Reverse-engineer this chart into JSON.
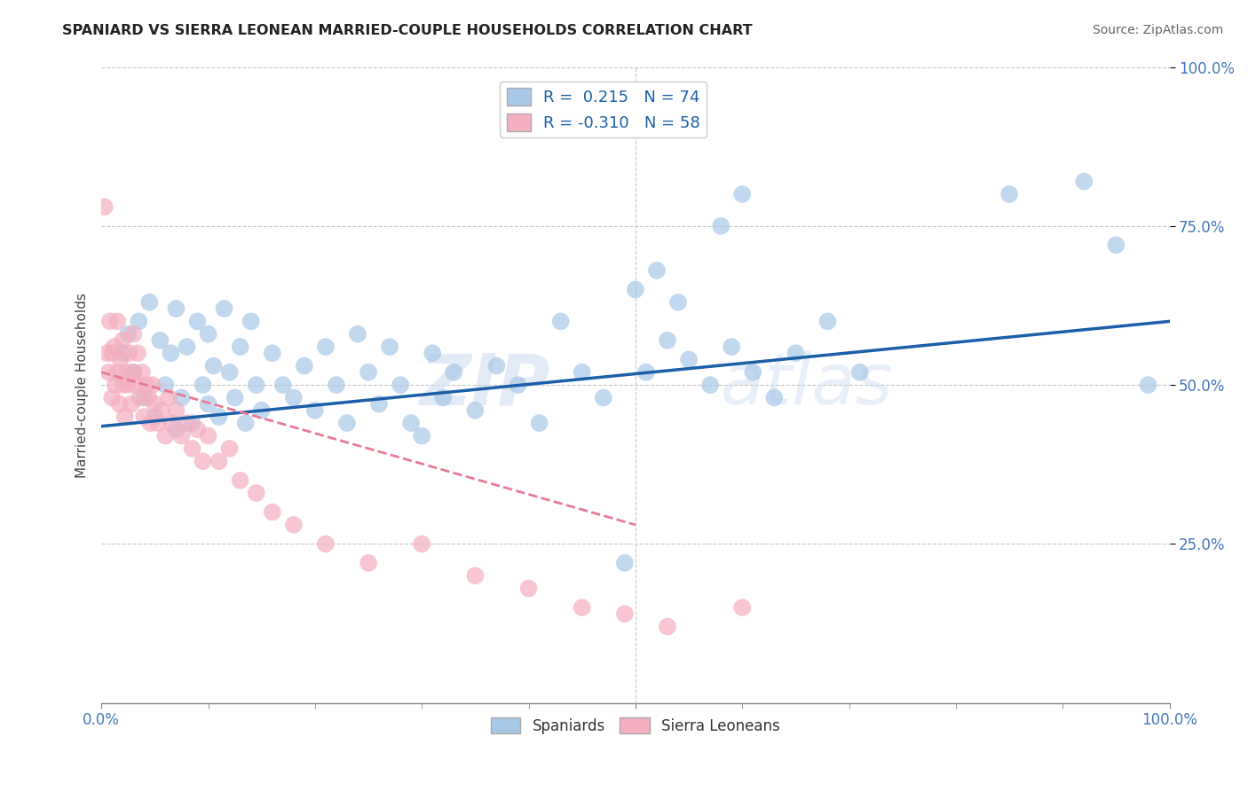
{
  "title": "SPANIARD VS SIERRA LEONEAN MARRIED-COUPLE HOUSEHOLDS CORRELATION CHART",
  "source": "Source: ZipAtlas.com",
  "ylabel": "Married-couple Households",
  "xlim": [
    0.0,
    1.0
  ],
  "ylim": [
    0.0,
    1.0
  ],
  "xtick_labels": [
    "0.0%",
    "100.0%"
  ],
  "xtick_vals": [
    0.0,
    1.0
  ],
  "ytick_labels": [
    "25.0%",
    "50.0%",
    "75.0%",
    "100.0%"
  ],
  "ytick_vals": [
    0.25,
    0.5,
    0.75,
    1.0
  ],
  "spaniard_color": "#a8c8e8",
  "sierra_color": "#f4afc0",
  "trend_spaniard_color": "#1a5fa8",
  "trend_sierra_color": "#e87a95",
  "watermark_zip": "ZIP",
  "watermark_atlas": "atlas",
  "background_color": "#ffffff",
  "grid_color": "#c8c8c8",
  "R_spaniard": 0.215,
  "N_spaniard": 74,
  "R_sierra": -0.31,
  "N_sierra": 58,
  "legend_label_sp": "R =  0.215   N = 74",
  "legend_label_sl": "R = -0.310   N = 58",
  "spaniard_x": [
    0.02,
    0.025,
    0.03,
    0.035,
    0.04,
    0.045,
    0.05,
    0.055,
    0.06,
    0.065,
    0.07,
    0.07,
    0.075,
    0.08,
    0.085,
    0.09,
    0.095,
    0.1,
    0.1,
    0.105,
    0.11,
    0.115,
    0.12,
    0.125,
    0.13,
    0.135,
    0.14,
    0.145,
    0.15,
    0.16,
    0.17,
    0.18,
    0.19,
    0.2,
    0.21,
    0.22,
    0.23,
    0.24,
    0.25,
    0.26,
    0.27,
    0.28,
    0.29,
    0.3,
    0.31,
    0.32,
    0.33,
    0.35,
    0.37,
    0.39,
    0.41,
    0.43,
    0.45,
    0.47,
    0.49,
    0.51,
    0.53,
    0.55,
    0.57,
    0.59,
    0.61,
    0.63,
    0.65,
    0.68,
    0.71,
    0.5,
    0.52,
    0.54,
    0.58,
    0.6,
    0.85,
    0.92,
    0.95,
    0.98
  ],
  "spaniard_y": [
    0.55,
    0.58,
    0.52,
    0.6,
    0.48,
    0.63,
    0.45,
    0.57,
    0.5,
    0.55,
    0.43,
    0.62,
    0.48,
    0.56,
    0.44,
    0.6,
    0.5,
    0.47,
    0.58,
    0.53,
    0.45,
    0.62,
    0.52,
    0.48,
    0.56,
    0.44,
    0.6,
    0.5,
    0.46,
    0.55,
    0.5,
    0.48,
    0.53,
    0.46,
    0.56,
    0.5,
    0.44,
    0.58,
    0.52,
    0.47,
    0.56,
    0.5,
    0.44,
    0.42,
    0.55,
    0.48,
    0.52,
    0.46,
    0.53,
    0.5,
    0.44,
    0.6,
    0.52,
    0.48,
    0.22,
    0.52,
    0.57,
    0.54,
    0.5,
    0.56,
    0.52,
    0.48,
    0.55,
    0.6,
    0.52,
    0.65,
    0.68,
    0.63,
    0.75,
    0.8,
    0.8,
    0.82,
    0.72,
    0.5
  ],
  "sierra_x": [
    0.003,
    0.005,
    0.007,
    0.008,
    0.01,
    0.01,
    0.012,
    0.013,
    0.015,
    0.015,
    0.017,
    0.018,
    0.02,
    0.02,
    0.022,
    0.023,
    0.025,
    0.026,
    0.028,
    0.03,
    0.03,
    0.032,
    0.034,
    0.036,
    0.038,
    0.04,
    0.042,
    0.044,
    0.046,
    0.048,
    0.05,
    0.053,
    0.056,
    0.06,
    0.063,
    0.066,
    0.07,
    0.075,
    0.08,
    0.085,
    0.09,
    0.095,
    0.1,
    0.11,
    0.12,
    0.13,
    0.145,
    0.16,
    0.18,
    0.21,
    0.25,
    0.3,
    0.35,
    0.4,
    0.45,
    0.49,
    0.53,
    0.6
  ],
  "sierra_y": [
    0.78,
    0.55,
    0.52,
    0.6,
    0.55,
    0.48,
    0.56,
    0.5,
    0.52,
    0.6,
    0.47,
    0.54,
    0.5,
    0.57,
    0.45,
    0.52,
    0.5,
    0.55,
    0.47,
    0.52,
    0.58,
    0.5,
    0.55,
    0.48,
    0.52,
    0.45,
    0.5,
    0.48,
    0.44,
    0.5,
    0.47,
    0.44,
    0.46,
    0.42,
    0.48,
    0.44,
    0.46,
    0.42,
    0.44,
    0.4,
    0.43,
    0.38,
    0.42,
    0.38,
    0.4,
    0.35,
    0.33,
    0.3,
    0.28,
    0.25,
    0.22,
    0.25,
    0.2,
    0.18,
    0.15,
    0.14,
    0.12,
    0.15
  ],
  "trend_sp_x0": 0.0,
  "trend_sp_y0": 0.435,
  "trend_sp_x1": 1.0,
  "trend_sp_y1": 0.6,
  "trend_sl_x0": 0.0,
  "trend_sl_y0": 0.52,
  "trend_sl_x1": 0.5,
  "trend_sl_y1": 0.28
}
